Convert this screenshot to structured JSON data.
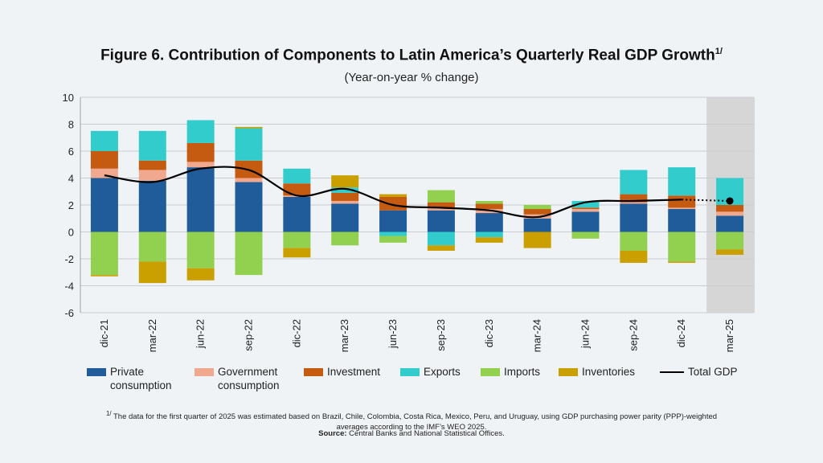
{
  "chart_data": {
    "type": "bar",
    "title": "Figure 6. Contribution of Components to Latin America’s Quarterly Real GDP Growth",
    "title_sup": "1/",
    "subtitle": "(Year-on-year % change)",
    "categories": [
      "dic-21",
      "mar-22",
      "jun-22",
      "sep-22",
      "dic-22",
      "mar-23",
      "jun-23",
      "sep-23",
      "dic-23",
      "mar-24",
      "jun-24",
      "sep-24",
      "dic-24",
      "mar-25"
    ],
    "y_ticks": [
      "10",
      "8",
      "6",
      "4",
      "2",
      "0",
      "-2",
      "-4",
      "-6"
    ],
    "ylim": [
      -6,
      10
    ],
    "grid": true,
    "highlighted_category": "mar-25",
    "series": [
      {
        "name": "Private consumption",
        "color": "#1f5c99",
        "values": [
          4.0,
          3.8,
          4.8,
          3.7,
          2.6,
          2.1,
          1.6,
          1.6,
          1.4,
          1.0,
          1.5,
          2.1,
          1.7,
          1.2
        ]
      },
      {
        "name": "Government consumption",
        "color": "#f0a98f",
        "values": [
          0.7,
          0.8,
          0.4,
          0.3,
          0.1,
          0.2,
          0.0,
          0.2,
          0.3,
          0.3,
          0.2,
          0.1,
          0.1,
          0.3
        ]
      },
      {
        "name": "Investment",
        "color": "#c55a11",
        "values": [
          1.3,
          0.7,
          1.4,
          1.3,
          0.9,
          0.6,
          1.0,
          0.4,
          0.4,
          0.4,
          0.1,
          0.6,
          0.9,
          0.5
        ]
      },
      {
        "name": "Exports",
        "color": "#33cccc",
        "values": [
          1.5,
          2.2,
          1.7,
          2.4,
          1.1,
          0.4,
          -0.3,
          -1.0,
          -0.4,
          0.0,
          0.5,
          1.8,
          2.1,
          2.0
        ]
      },
      {
        "name": "Imports",
        "color": "#92d050",
        "values": [
          -3.2,
          -2.2,
          -2.7,
          -3.2,
          -1.2,
          -1.0,
          -0.5,
          0.9,
          0.2,
          0.3,
          -0.5,
          -1.4,
          -2.2,
          -1.3
        ]
      },
      {
        "name": "Inventories",
        "color": "#c9a000",
        "values": [
          -0.1,
          -1.6,
          -0.9,
          0.1,
          -0.7,
          0.9,
          0.2,
          -0.4,
          -0.4,
          -1.2,
          0.0,
          -0.9,
          -0.1,
          -0.4
        ]
      }
    ],
    "total": {
      "name": "Total GDP",
      "color": "#000000",
      "values": [
        4.2,
        3.7,
        4.7,
        4.6,
        2.7,
        3.2,
        2.0,
        1.8,
        1.6,
        1.1,
        2.2,
        2.3,
        2.4,
        2.3
      ],
      "estimated_last": true
    }
  },
  "legend": [
    {
      "label": "Private\nconsumption",
      "color": "#1f5c99",
      "kind": "box"
    },
    {
      "label": "Government\nconsumption",
      "color": "#f0a98f",
      "kind": "box"
    },
    {
      "label": "Investment",
      "color": "#c55a11",
      "kind": "box"
    },
    {
      "label": "Exports",
      "color": "#33cccc",
      "kind": "box"
    },
    {
      "label": "Imports",
      "color": "#92d050",
      "kind": "box"
    },
    {
      "label": "Inventories",
      "color": "#c9a000",
      "kind": "box"
    },
    {
      "label": "Total GDP",
      "color": "#000000",
      "kind": "line"
    }
  ],
  "footnote": {
    "marker": "1/",
    "line1": "The data for the first quarter of 2025 was estimated based on Brazil, Chile, Colombia, Costa Rica, Mexico, Peru, and Uruguay, using GDP purchasing power parity (PPP)-weighted",
    "line2": "averages according to the IMF’s WEO 2025."
  },
  "source": {
    "label": "Source:",
    "text": " Central Banks and National Statistical Offices."
  }
}
